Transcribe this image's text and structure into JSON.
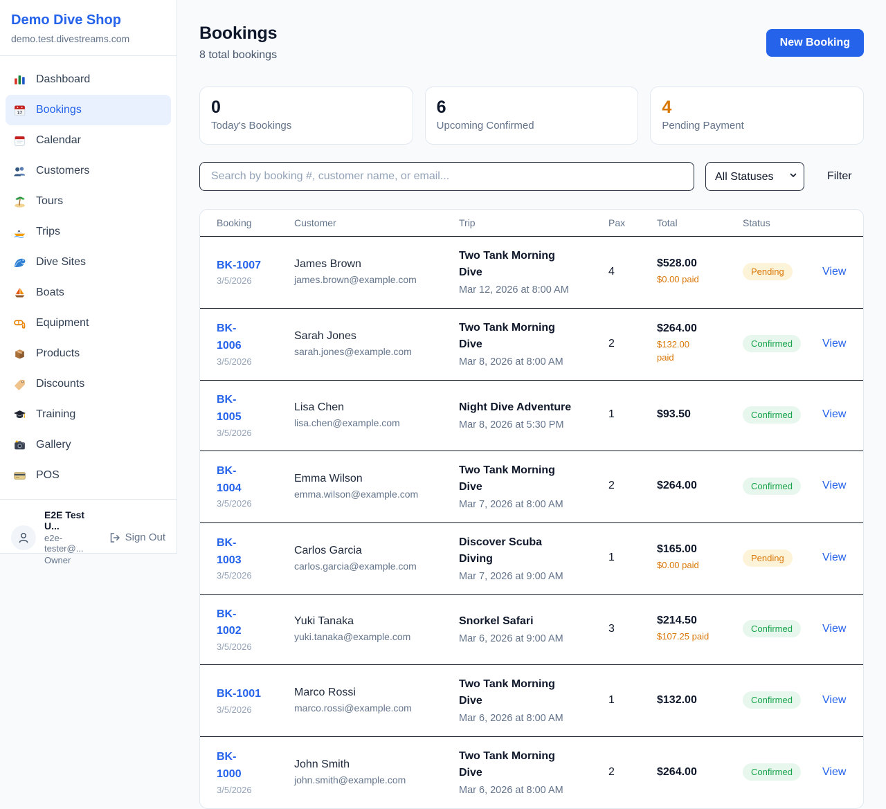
{
  "sidebar": {
    "brand": {
      "title": "Demo Dive Shop",
      "domain": "demo.test.divestreams.com"
    },
    "items": [
      {
        "label": "Dashboard",
        "icon": "dashboard-icon",
        "active": false
      },
      {
        "label": "Bookings",
        "icon": "bookings-icon",
        "active": true
      },
      {
        "label": "Calendar",
        "icon": "calendar-icon",
        "active": false
      },
      {
        "label": "Customers",
        "icon": "customers-icon",
        "active": false
      },
      {
        "label": "Tours",
        "icon": "tours-icon",
        "active": false
      },
      {
        "label": "Trips",
        "icon": "trips-icon",
        "active": false
      },
      {
        "label": "Dive Sites",
        "icon": "dive-sites-icon",
        "active": false
      },
      {
        "label": "Boats",
        "icon": "boats-icon",
        "active": false
      },
      {
        "label": "Equipment",
        "icon": "equipment-icon",
        "active": false
      },
      {
        "label": "Products",
        "icon": "products-icon",
        "active": false
      },
      {
        "label": "Discounts",
        "icon": "discounts-icon",
        "active": false
      },
      {
        "label": "Training",
        "icon": "training-icon",
        "active": false
      },
      {
        "label": "Gallery",
        "icon": "gallery-icon",
        "active": false
      },
      {
        "label": "POS",
        "icon": "pos-icon",
        "active": false
      }
    ],
    "user": {
      "name": "E2E Test U...",
      "email": "e2e-tester@...",
      "role": "Owner",
      "sign_out": "Sign Out"
    }
  },
  "header": {
    "title": "Bookings",
    "subtitle": "8 total bookings",
    "new_booking": "New Booking"
  },
  "stats": [
    {
      "value": "0",
      "label": "Today's Bookings",
      "accent": false
    },
    {
      "value": "6",
      "label": "Upcoming Confirmed",
      "accent": false
    },
    {
      "value": "4",
      "label": "Pending Payment",
      "accent": true
    }
  ],
  "filters": {
    "search_placeholder": "Search by booking #, customer name, or email...",
    "status_selected": "All Statuses",
    "filter_label": "Filter"
  },
  "table": {
    "columns": [
      "Booking",
      "Customer",
      "Trip",
      "Pax",
      "Total",
      "Status"
    ],
    "view_label": "View",
    "rows": [
      {
        "id": "BK-1007",
        "id_display": "BK-1007",
        "date": "3/5/2026",
        "customer": "James Brown",
        "email": "james.brown@example.com",
        "trip": "Two Tank Morning\nDive",
        "trip_when": "Mar 12, 2026 at 8:00 AM",
        "pax": "4",
        "total": "$528.00",
        "paid": "$0.00 paid",
        "status": "Pending"
      },
      {
        "id": "BK-1006",
        "id_display": "BK-\n1006",
        "date": "3/5/2026",
        "customer": "Sarah Jones",
        "email": "sarah.jones@example.com",
        "trip": "Two Tank Morning\nDive",
        "trip_when": "Mar 8, 2026 at 8:00 AM",
        "pax": "2",
        "total": "$264.00",
        "paid": "$132.00\npaid",
        "status": "Confirmed"
      },
      {
        "id": "BK-1005",
        "id_display": "BK-\n1005",
        "date": "3/5/2026",
        "customer": "Lisa Chen",
        "email": "lisa.chen@example.com",
        "trip": "Night Dive Adventure",
        "trip_when": "Mar 8, 2026 at 5:30 PM",
        "pax": "1",
        "total": "$93.50",
        "paid": null,
        "status": "Confirmed"
      },
      {
        "id": "BK-1004",
        "id_display": "BK-\n1004",
        "date": "3/5/2026",
        "customer": "Emma Wilson",
        "email": "emma.wilson@example.com",
        "trip": "Two Tank Morning\nDive",
        "trip_when": "Mar 7, 2026 at 8:00 AM",
        "pax": "2",
        "total": "$264.00",
        "paid": null,
        "status": "Confirmed"
      },
      {
        "id": "BK-1003",
        "id_display": "BK-\n1003",
        "date": "3/5/2026",
        "customer": "Carlos Garcia",
        "email": "carlos.garcia@example.com",
        "trip": "Discover Scuba\nDiving",
        "trip_when": "Mar 7, 2026 at 9:00 AM",
        "pax": "1",
        "total": "$165.00",
        "paid": "$0.00 paid",
        "status": "Pending"
      },
      {
        "id": "BK-1002",
        "id_display": "BK-\n1002",
        "date": "3/5/2026",
        "customer": "Yuki Tanaka",
        "email": "yuki.tanaka@example.com",
        "trip": "Snorkel Safari",
        "trip_when": "Mar 6, 2026 at 9:00 AM",
        "pax": "3",
        "total": "$214.50",
        "paid": "$107.25 paid",
        "status": "Confirmed"
      },
      {
        "id": "BK-1001",
        "id_display": "BK-1001",
        "date": "3/5/2026",
        "customer": "Marco Rossi",
        "email": "marco.rossi@example.com",
        "trip": "Two Tank Morning\nDive",
        "trip_when": "Mar 6, 2026 at 8:00 AM",
        "pax": "1",
        "total": "$132.00",
        "paid": null,
        "status": "Confirmed"
      },
      {
        "id": "BK-1000",
        "id_display": "BK-\n1000",
        "date": "3/5/2026",
        "customer": "John Smith",
        "email": "john.smith@example.com",
        "trip": "Two Tank Morning\nDive",
        "trip_when": "Mar 6, 2026 at 8:00 AM",
        "pax": "2",
        "total": "$264.00",
        "paid": null,
        "status": "Confirmed"
      }
    ]
  },
  "colors": {
    "brand_blue": "#2563eb",
    "pending_text": "#d97706",
    "pending_bg": "#fdf3d9",
    "confirmed_text": "#16a34a",
    "confirmed_bg": "#e7f7ed",
    "paid_orange": "#d97706"
  }
}
